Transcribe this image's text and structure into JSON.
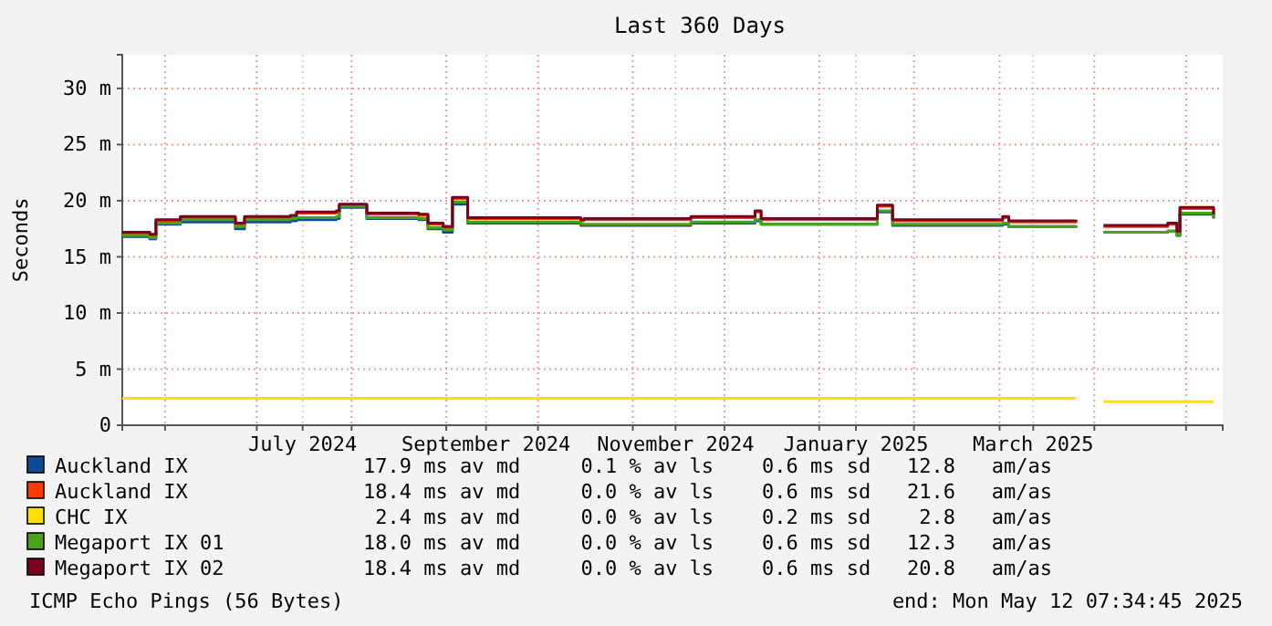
{
  "chart_data": {
    "type": "step",
    "title": "Last 360 Days",
    "ylabel": "Seconds",
    "x": [
      "2024-05-18",
      "2024-05-27",
      "2024-05-29",
      "2024-06-06",
      "2024-06-24",
      "2024-06-27",
      "2024-07-12",
      "2024-07-14",
      "2024-07-27",
      "2024-07-28",
      "2024-08-06",
      "2024-08-23",
      "2024-08-26",
      "2024-08-31",
      "2024-09-03",
      "2024-09-08",
      "2024-10-15",
      "2024-10-16",
      "2024-11-20",
      "2024-12-11",
      "2024-12-13",
      "2025-01-18",
      "2025-01-20",
      "2025-01-25",
      "2025-03-02",
      "2025-03-04",
      "2025-03-26",
      "2025-03-30",
      "2025-04-04",
      "2025-04-25",
      "2025-04-28",
      "2025-04-29",
      "2025-05-10"
    ],
    "series": [
      {
        "name": "Auckland IX",
        "color": "#0c4c96",
        "values": [
          16.8,
          16.6,
          17.9,
          18.1,
          17.5,
          18.1,
          18.2,
          18.3,
          18.4,
          19.4,
          18.4,
          18.3,
          17.5,
          17.2,
          19.7,
          18.0,
          17.8,
          17.8,
          18.0,
          18.2,
          17.9,
          17.9,
          19.0,
          17.8,
          17.9,
          17.7,
          17.8,
          null,
          17.2,
          17.3,
          16.9,
          18.8,
          18.4
        ]
      },
      {
        "name": "Auckland IX",
        "color": "#ff3a00",
        "values": [
          17.1,
          16.9,
          18.2,
          18.5,
          17.9,
          18.5,
          18.6,
          18.9,
          19.0,
          19.6,
          18.8,
          18.7,
          17.9,
          17.6,
          20.2,
          18.4,
          18.2,
          18.3,
          18.5,
          19.0,
          18.3,
          18.3,
          19.5,
          18.2,
          18.5,
          18.1,
          18.2,
          null,
          17.7,
          17.9,
          17.2,
          19.3,
          18.7
        ]
      },
      {
        "name": "CHC IX",
        "color": "#ffe000",
        "values": [
          2.4,
          2.4,
          2.4,
          2.4,
          2.4,
          2.4,
          2.4,
          2.4,
          2.4,
          2.4,
          2.4,
          2.4,
          2.4,
          2.4,
          2.4,
          2.4,
          2.4,
          2.4,
          2.4,
          2.4,
          2.4,
          2.4,
          2.4,
          2.4,
          2.4,
          2.4,
          2.4,
          null,
          2.1,
          2.1,
          2.1,
          2.1,
          2.1
        ]
      },
      {
        "name": "Megaport IX 01",
        "color": "#4aa21b",
        "values": [
          16.9,
          16.7,
          18.0,
          18.3,
          17.7,
          18.3,
          18.4,
          18.5,
          18.6,
          19.5,
          18.5,
          18.4,
          17.6,
          17.4,
          19.9,
          18.1,
          17.9,
          17.9,
          18.1,
          18.3,
          17.9,
          17.9,
          19.1,
          17.9,
          18.0,
          17.7,
          17.8,
          null,
          17.2,
          17.3,
          16.9,
          18.9,
          18.5
        ]
      },
      {
        "name": "Megaport IX 02",
        "color": "#7a0022",
        "values": [
          17.2,
          17.0,
          18.3,
          18.6,
          18.0,
          18.6,
          18.7,
          19.0,
          19.1,
          19.7,
          18.9,
          18.8,
          18.0,
          17.7,
          20.3,
          18.5,
          18.3,
          18.4,
          18.6,
          19.1,
          18.4,
          18.4,
          19.6,
          18.3,
          18.6,
          18.2,
          18.3,
          null,
          17.8,
          18.0,
          17.3,
          19.4,
          18.8
        ]
      }
    ],
    "xlim": [
      "2024-05-18",
      "2025-05-13"
    ],
    "xticks": [
      {
        "value": "2024-06-01",
        "label": null
      },
      {
        "value": "2024-07-01",
        "label": null
      },
      {
        "value": "2024-07-16",
        "label": "July 2024"
      },
      {
        "value": "2024-08-01",
        "label": null
      },
      {
        "value": "2024-09-01",
        "label": null
      },
      {
        "value": "2024-09-14",
        "label": "September 2024"
      },
      {
        "value": "2024-10-01",
        "label": null
      },
      {
        "value": "2024-11-01",
        "label": null
      },
      {
        "value": "2024-11-15",
        "label": "November 2024"
      },
      {
        "value": "2024-12-01",
        "label": null
      },
      {
        "value": "2025-01-01",
        "label": null
      },
      {
        "value": "2025-01-13",
        "label": "January 2025"
      },
      {
        "value": "2025-02-01",
        "label": null
      },
      {
        "value": "2025-03-01",
        "label": null
      },
      {
        "value": "2025-03-12",
        "label": "March 2025"
      },
      {
        "value": "2025-04-01",
        "label": null
      },
      {
        "value": "2025-05-01",
        "label": null
      }
    ],
    "ylim": [
      0,
      33
    ],
    "yticks": [
      0,
      {
        "value": 5,
        "label": "5 m"
      },
      {
        "value": 10,
        "label": "10 m"
      },
      {
        "value": 15,
        "label": "15 m"
      },
      {
        "value": 20,
        "label": "20 m"
      },
      {
        "value": 25,
        "label": "25 m"
      },
      {
        "value": 30,
        "label": "30 m"
      }
    ],
    "grid": true,
    "legend": "bottom",
    "annotations": [
      "17.9 ms av md     0.1 % av ls    0.6 ms sd   12.8   am/as",
      "18.4 ms av md     0.0 % av ls    0.6 ms sd   21.6   am/as",
      " 2.4 ms av md     0.0 % av ls    0.2 ms sd    2.8   am/as",
      "18.0 ms av md     0.0 % av ls    0.6 ms sd   12.3   am/as",
      "18.4 ms av md     0.0 % av ls    0.6 ms sd   20.8   am/as",
      "ICMP Echo Pings (56 Bytes)",
      "end: Mon May 12 07:34:45 2025"
    ]
  }
}
